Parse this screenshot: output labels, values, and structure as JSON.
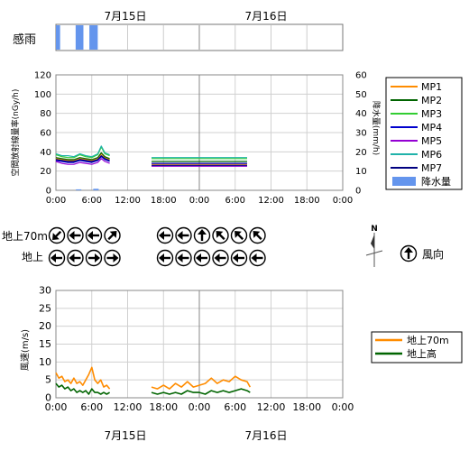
{
  "dates": {
    "day1": "7月15日",
    "day2": "7月16日"
  },
  "rain_panel": {
    "label": "感雨",
    "x_range_hours": [
      0,
      48
    ],
    "rain_intervals_hours": [
      [
        0.0,
        0.7
      ],
      [
        3.3,
        4.6
      ],
      [
        5.6,
        7.0
      ]
    ]
  },
  "time_ticks": [
    "0:00",
    "6:00",
    "12:00",
    "18:00",
    "0:00",
    "6:00",
    "12:00",
    "18:00",
    "0:00"
  ],
  "legend_top": {
    "items": [
      {
        "name": "MP1",
        "color": "#ff8c00"
      },
      {
        "name": "MP2",
        "color": "#006400"
      },
      {
        "name": "MP3",
        "color": "#32cd32"
      },
      {
        "name": "MP4",
        "color": "#0000cd"
      },
      {
        "name": "MP5",
        "color": "#9400d3"
      },
      {
        "name": "MP6",
        "color": "#20b2aa"
      },
      {
        "name": "MP7",
        "color": "#000080"
      },
      {
        "name": "降水量",
        "color": "#6495ed"
      }
    ]
  },
  "wind_dir": {
    "row1_label": "地上70m",
    "row2_label": "地上",
    "legend_label": "風向",
    "north_label": "N",
    "row1_group1_deg": [
      225,
      270,
      270,
      45
    ],
    "row2_group1_deg": [
      270,
      270,
      90,
      90
    ],
    "row1_group2_deg": [
      270,
      270,
      0,
      315,
      315,
      315
    ],
    "row2_group2_deg": [
      270,
      270,
      270,
      270,
      270,
      270
    ],
    "legend_deg": 0
  },
  "chart_data": [
    {
      "type": "line",
      "ylabel": "空間放射線量率(nGy/h)",
      "y2label": "降水量(mm/h)",
      "ylim": [
        0,
        120
      ],
      "y2lim": [
        0,
        60
      ],
      "yticks": [
        0,
        20,
        40,
        60,
        80,
        100,
        120
      ],
      "y2ticks": [
        0,
        10,
        20,
        30,
        40,
        50,
        60
      ],
      "xlim": [
        0,
        48
      ],
      "xtick_labels": [
        "0:00",
        "6:00",
        "12:00",
        "18:00",
        "0:00",
        "6:00",
        "12:00",
        "18:00",
        "0:00"
      ],
      "grid": true,
      "legend_placement": "right",
      "series": [
        {
          "name": "MP1",
          "color": "#ff8c00",
          "segments": [
            [
              [
                0,
                33
              ],
              [
                1,
                32
              ],
              [
                2,
                31
              ],
              [
                3,
                31
              ],
              [
                4,
                33
              ],
              [
                5,
                32
              ],
              [
                6,
                31
              ],
              [
                7,
                33
              ],
              [
                7.6,
                38
              ],
              [
                8.2,
                34
              ],
              [
                9,
                32
              ]
            ],
            [
              [
                16,
                27
              ],
              [
                20,
                27
              ],
              [
                24,
                27
              ],
              [
                28,
                27
              ],
              [
                32,
                27
              ]
            ]
          ]
        },
        {
          "name": "MP2",
          "color": "#006400",
          "segments": [
            [
              [
                0,
                34
              ],
              [
                1,
                33
              ],
              [
                2,
                32
              ],
              [
                3,
                32
              ],
              [
                4,
                34
              ],
              [
                5,
                33
              ],
              [
                6,
                32
              ],
              [
                7,
                34
              ],
              [
                7.6,
                39
              ],
              [
                8.2,
                35
              ],
              [
                9,
                33
              ]
            ],
            [
              [
                16,
                30
              ],
              [
                20,
                30
              ],
              [
                24,
                30
              ],
              [
                28,
                30
              ],
              [
                32,
                30
              ]
            ]
          ]
        },
        {
          "name": "MP3",
          "color": "#32cd32",
          "segments": [
            [
              [
                0,
                37
              ],
              [
                1,
                35
              ],
              [
                2,
                34
              ],
              [
                3,
                34
              ],
              [
                4,
                37
              ],
              [
                5,
                35
              ],
              [
                6,
                34
              ],
              [
                7,
                37
              ],
              [
                7.6,
                45
              ],
              [
                8.2,
                38
              ],
              [
                9,
                36
              ]
            ],
            [
              [
                16,
                33
              ],
              [
                20,
                33
              ],
              [
                24,
                33
              ],
              [
                28,
                33
              ],
              [
                32,
                33
              ]
            ]
          ]
        },
        {
          "name": "MP4",
          "color": "#0000cd",
          "segments": [
            [
              [
                0,
                31
              ],
              [
                1,
                30
              ],
              [
                2,
                29
              ],
              [
                3,
                29
              ],
              [
                4,
                31
              ],
              [
                5,
                30
              ],
              [
                6,
                29
              ],
              [
                7,
                31
              ],
              [
                7.6,
                35
              ],
              [
                8.2,
                32
              ],
              [
                9,
                30
              ]
            ],
            [
              [
                16,
                28
              ],
              [
                20,
                28
              ],
              [
                24,
                28
              ],
              [
                28,
                28
              ],
              [
                32,
                28
              ]
            ]
          ]
        },
        {
          "name": "MP5",
          "color": "#9400d3",
          "segments": [
            [
              [
                0,
                30
              ],
              [
                1,
                28
              ],
              [
                2,
                27
              ],
              [
                3,
                27
              ],
              [
                4,
                29
              ],
              [
                5,
                28
              ],
              [
                6,
                27
              ],
              [
                7,
                29
              ],
              [
                7.6,
                33
              ],
              [
                8.2,
                30
              ],
              [
                9,
                28
              ]
            ],
            [
              [
                16,
                25
              ],
              [
                20,
                25
              ],
              [
                24,
                25
              ],
              [
                28,
                25
              ],
              [
                32,
                25
              ]
            ]
          ]
        },
        {
          "name": "MP6",
          "color": "#20b2aa",
          "segments": [
            [
              [
                0,
                38
              ],
              [
                1,
                36
              ],
              [
                2,
                36
              ],
              [
                3,
                35
              ],
              [
                4,
                38
              ],
              [
                5,
                36
              ],
              [
                6,
                35
              ],
              [
                7,
                38
              ],
              [
                7.6,
                46
              ],
              [
                8.2,
                39
              ],
              [
                9,
                37
              ]
            ],
            [
              [
                16,
                34
              ],
              [
                20,
                34
              ],
              [
                24,
                34
              ],
              [
                28,
                34
              ],
              [
                32,
                34
              ]
            ]
          ]
        },
        {
          "name": "MP7",
          "color": "#000080",
          "segments": [
            [
              [
                0,
                32
              ],
              [
                1,
                31
              ],
              [
                2,
                30
              ],
              [
                3,
                30
              ],
              [
                4,
                32
              ],
              [
                5,
                31
              ],
              [
                6,
                30
              ],
              [
                7,
                32
              ],
              [
                7.6,
                36
              ],
              [
                8.2,
                33
              ],
              [
                9,
                31
              ]
            ],
            [
              [
                16,
                26
              ],
              [
                20,
                26
              ],
              [
                24,
                26
              ],
              [
                28,
                26
              ],
              [
                32,
                26
              ]
            ]
          ]
        }
      ],
      "rain_bars": {
        "name": "降水量",
        "color": "#6495ed",
        "bars": [
          {
            "x": 3.8,
            "value": 0.5
          },
          {
            "x": 6.7,
            "value": 0.8
          }
        ]
      }
    },
    {
      "type": "line",
      "ylabel": "風速(m/s)",
      "ylim": [
        0,
        30
      ],
      "yticks": [
        0,
        5,
        10,
        15,
        20,
        25,
        30
      ],
      "xlim": [
        0,
        48
      ],
      "xtick_labels": [
        "0:00",
        "6:00",
        "12:00",
        "18:00",
        "0:00",
        "6:00",
        "12:00",
        "18:00",
        "0:00"
      ],
      "grid": true,
      "legend_placement": "right",
      "series": [
        {
          "name": "地上70m",
          "color": "#ff8c00",
          "segments": [
            [
              [
                0,
                7
              ],
              [
                0.5,
                5.5
              ],
              [
                1,
                6
              ],
              [
                1.5,
                4.5
              ],
              [
                2,
                5
              ],
              [
                2.5,
                4
              ],
              [
                3,
                5.5
              ],
              [
                3.5,
                4
              ],
              [
                4,
                4.5
              ],
              [
                4.5,
                3.5
              ],
              [
                5,
                5
              ],
              [
                5.5,
                6.5
              ],
              [
                6,
                8.5
              ],
              [
                6.5,
                5
              ],
              [
                7,
                4
              ],
              [
                7.5,
                5
              ],
              [
                8,
                3
              ],
              [
                8.5,
                3.5
              ],
              [
                9,
                2.5
              ]
            ],
            [
              [
                16,
                3
              ],
              [
                17,
                2.5
              ],
              [
                18,
                3.5
              ],
              [
                19,
                2.5
              ],
              [
                20,
                4
              ],
              [
                21,
                3
              ],
              [
                22,
                4.5
              ],
              [
                23,
                3
              ],
              [
                24,
                3.5
              ],
              [
                25,
                4
              ],
              [
                26,
                5.5
              ],
              [
                27,
                4
              ],
              [
                28,
                5
              ],
              [
                29,
                4.5
              ],
              [
                30,
                6
              ],
              [
                31,
                5
              ],
              [
                32,
                4.5
              ],
              [
                32.5,
                3
              ]
            ]
          ]
        },
        {
          "name": "地上高",
          "color": "#006400",
          "segments": [
            [
              [
                0,
                4
              ],
              [
                0.5,
                3
              ],
              [
                1,
                3.5
              ],
              [
                1.5,
                2.5
              ],
              [
                2,
                3
              ],
              [
                2.5,
                2
              ],
              [
                3,
                2.5
              ],
              [
                3.5,
                1.5
              ],
              [
                4,
                2
              ],
              [
                4.5,
                1.5
              ],
              [
                5,
                2
              ],
              [
                5.5,
                1
              ],
              [
                6,
                2.5
              ],
              [
                6.5,
                1.5
              ],
              [
                7,
                1.5
              ],
              [
                7.5,
                1
              ],
              [
                8,
                1.5
              ],
              [
                8.5,
                1
              ],
              [
                9,
                1.5
              ]
            ],
            [
              [
                16,
                1.5
              ],
              [
                17,
                1
              ],
              [
                18,
                1.5
              ],
              [
                19,
                1
              ],
              [
                20,
                1.5
              ],
              [
                21,
                1
              ],
              [
                22,
                2
              ],
              [
                23,
                1.5
              ],
              [
                24,
                1.5
              ],
              [
                25,
                1
              ],
              [
                26,
                2
              ],
              [
                27,
                1.5
              ],
              [
                28,
                2
              ],
              [
                29,
                1.5
              ],
              [
                30,
                2
              ],
              [
                31,
                2.5
              ],
              [
                32,
                2
              ],
              [
                32.5,
                1.5
              ]
            ]
          ]
        }
      ]
    }
  ]
}
